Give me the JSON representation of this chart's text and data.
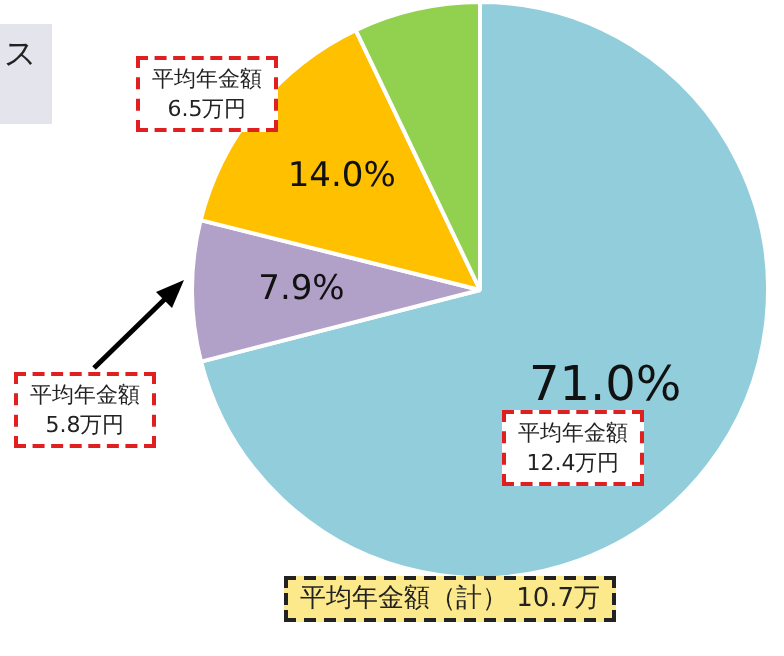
{
  "chart_data": {
    "type": "pie",
    "categories": [
      null,
      null,
      null,
      null
    ],
    "values": [
      71.0,
      7.9,
      14.0,
      7.1
    ],
    "colors": [
      "#92cddc",
      "#b1a0c7",
      "#ffc000",
      "#92d050"
    ],
    "value_labels": [
      "71.0%",
      "7.9%",
      "14.0%",
      null
    ],
    "annotations": [
      "ス",
      "平均年金額\n6.5万円",
      "平均年金額\n5.8万円",
      "平均年金額\n12.4万円",
      "平均年金額（計） 10.7万"
    ],
    "legend": false
  }
}
